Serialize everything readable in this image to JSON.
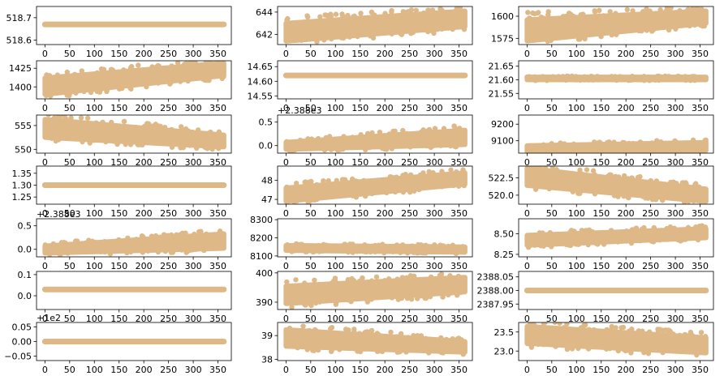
{
  "colors": {
    "marker": "#deb887",
    "axes": "#000000",
    "background": "#ffffff"
  },
  "chart_data": [
    {
      "type": "scatter",
      "panel": 1,
      "xlim": [
        -17,
        377
      ],
      "ylim": [
        518.58,
        518.75
      ],
      "yticks": [
        518.6,
        518.7
      ],
      "ytick_labels": [
        "518.6",
        "518.7"
      ],
      "xticks": [
        0,
        50,
        100,
        150,
        200,
        250,
        300,
        350
      ],
      "xtick_labels": [
        "0",
        "50",
        "100",
        "150",
        "200",
        "250",
        "300",
        "350"
      ],
      "band": {
        "lo": 518.67,
        "hi": 518.67,
        "lo_end": 518.67,
        "hi_end": 518.67
      }
    },
    {
      "type": "scatter",
      "panel": 2,
      "xlim": [
        -17,
        377
      ],
      "ylim": [
        641.1,
        644.5
      ],
      "yticks": [
        642,
        644
      ],
      "ytick_labels": [
        "642",
        "644"
      ],
      "xticks": [
        0,
        50,
        100,
        150,
        200,
        250,
        300,
        350
      ],
      "xtick_labels": [
        "0",
        "50",
        "100",
        "150",
        "200",
        "250",
        "300",
        "350"
      ],
      "band": {
        "lo": 641.4,
        "hi": 643.0,
        "lo_end": 642.7,
        "hi_end": 644.1
      }
    },
    {
      "type": "scatter",
      "panel": 3,
      "xlim": [
        -17,
        377
      ],
      "ylim": [
        1568,
        1611
      ],
      "yticks": [
        1575,
        1600
      ],
      "ytick_labels": [
        "1575",
        "1600"
      ],
      "xticks": [
        0,
        50,
        100,
        150,
        200,
        250,
        300,
        350
      ],
      "xtick_labels": [
        "0",
        "50",
        "100",
        "150",
        "200",
        "250",
        "300",
        "350"
      ],
      "band": {
        "lo": 1572,
        "hi": 1596,
        "lo_end": 1592,
        "hi_end": 1606
      }
    },
    {
      "type": "scatter",
      "panel": 4,
      "xlim": [
        -17,
        377
      ],
      "ylim": [
        1384,
        1435
      ],
      "yticks": [
        1400,
        1425
      ],
      "ytick_labels": [
        "1400",
        "1425"
      ],
      "xticks": [
        0,
        50,
        100,
        150,
        200,
        250,
        300,
        350
      ],
      "xtick_labels": [
        "0",
        "50",
        "100",
        "150",
        "200",
        "250",
        "300",
        "350"
      ],
      "band": {
        "lo": 1390,
        "hi": 1412,
        "lo_end": 1415,
        "hi_end": 1432
      }
    },
    {
      "type": "scatter",
      "panel": 5,
      "xlim": [
        -17,
        377
      ],
      "ylim": [
        14.54,
        14.67
      ],
      "yticks": [
        14.55,
        14.6,
        14.65
      ],
      "ytick_labels": [
        "14.55",
        "14.60",
        "14.65"
      ],
      "xticks": [
        0,
        50,
        100,
        150,
        200,
        250,
        300,
        350
      ],
      "xtick_labels": [
        "0",
        "50",
        "100",
        "150",
        "200",
        "250",
        "300",
        "350"
      ],
      "band": {
        "lo": 14.62,
        "hi": 14.62,
        "lo_end": 14.62,
        "hi_end": 14.62
      }
    },
    {
      "type": "scatter",
      "panel": 6,
      "xlim": [
        -17,
        377
      ],
      "ylim": [
        21.53,
        21.67
      ],
      "yticks": [
        21.55,
        21.6,
        21.65
      ],
      "ytick_labels": [
        "21.55",
        "21.60",
        "21.65"
      ],
      "xticks": [
        0,
        50,
        100,
        150,
        200,
        250,
        300,
        350
      ],
      "xtick_labels": [
        "0",
        "50",
        "100",
        "150",
        "200",
        "250",
        "300",
        "350"
      ],
      "band": {
        "lo": 21.6,
        "hi": 21.61,
        "lo_end": 21.6,
        "hi_end": 21.61
      }
    },
    {
      "type": "scatter",
      "panel": 7,
      "xlim": [
        -17,
        377
      ],
      "ylim": [
        549.2,
        557.2
      ],
      "yticks": [
        550,
        555
      ],
      "ytick_labels": [
        "550",
        "555"
      ],
      "xticks": [
        0,
        50,
        100,
        150,
        200,
        250,
        300,
        350
      ],
      "xtick_labels": [
        "0",
        "50",
        "100",
        "150",
        "200",
        "250",
        "300",
        "350"
      ],
      "band": {
        "lo": 552.5,
        "hi": 556.3,
        "lo_end": 550.5,
        "hi_end": 553.0
      }
    },
    {
      "type": "scatter",
      "panel": 8,
      "y_offset_label": "+2.388e3",
      "xlim": [
        -17,
        377
      ],
      "ylim": [
        -0.16,
        0.65
      ],
      "yticks": [
        0.0,
        0.5
      ],
      "ytick_labels": [
        "0.0",
        "0.5"
      ],
      "xticks": [
        0,
        50,
        100,
        150,
        200,
        250,
        300,
        350
      ],
      "xtick_labels": [
        "0",
        "50",
        "100",
        "150",
        "200",
        "250",
        "300",
        "350"
      ],
      "band": {
        "lo": -0.08,
        "hi": 0.07,
        "lo_end": 0.02,
        "hi_end": 0.33
      }
    },
    {
      "type": "scatter",
      "panel": 9,
      "xlim": [
        -17,
        377
      ],
      "ylim": [
        9025,
        9255
      ],
      "yticks": [
        9100,
        9200
      ],
      "ytick_labels": [
        "9100",
        "9200"
      ],
      "xticks": [
        0,
        50,
        100,
        150,
        200,
        250,
        300,
        350
      ],
      "xtick_labels": [
        "0",
        "50",
        "100",
        "150",
        "200",
        "250",
        "300",
        "350"
      ],
      "band": {
        "lo": 9035,
        "hi": 9070,
        "lo_end": 9040,
        "hi_end": 9090
      }
    },
    {
      "type": "scatter",
      "panel": 10,
      "xlim": [
        -17,
        377
      ],
      "ylim": [
        1.22,
        1.38
      ],
      "yticks": [
        1.25,
        1.3,
        1.35
      ],
      "ytick_labels": [
        "1.25",
        "1.30",
        "1.35"
      ],
      "xticks": [
        0,
        50,
        100,
        150,
        200,
        250,
        300,
        350
      ],
      "xtick_labels": [
        "0",
        "50",
        "100",
        "150",
        "200",
        "250",
        "300",
        "350"
      ],
      "band": {
        "lo": 1.3,
        "hi": 1.3,
        "lo_end": 1.3,
        "hi_end": 1.3
      }
    },
    {
      "type": "scatter",
      "panel": 11,
      "xlim": [
        -17,
        377
      ],
      "ylim": [
        46.75,
        48.75
      ],
      "yticks": [
        47,
        48
      ],
      "ytick_labels": [
        "47",
        "48"
      ],
      "xticks": [
        0,
        50,
        100,
        150,
        200,
        250,
        300,
        350
      ],
      "xtick_labels": [
        "0",
        "50",
        "100",
        "150",
        "200",
        "250",
        "300",
        "350"
      ],
      "band": {
        "lo": 46.9,
        "hi": 47.6,
        "lo_end": 47.8,
        "hi_end": 48.4
      }
    },
    {
      "type": "scatter",
      "panel": 12,
      "xlim": [
        -17,
        377
      ],
      "ylim": [
        518.7,
        524.2
      ],
      "yticks": [
        520.0,
        522.5
      ],
      "ytick_labels": [
        "520.0",
        "522.5"
      ],
      "xticks": [
        0,
        50,
        100,
        150,
        200,
        250,
        300,
        350
      ],
      "xtick_labels": [
        "0",
        "50",
        "100",
        "150",
        "200",
        "250",
        "300",
        "350"
      ],
      "band": {
        "lo": 521.4,
        "hi": 523.9,
        "lo_end": 519.1,
        "hi_end": 520.9
      }
    },
    {
      "type": "scatter",
      "panel": 13,
      "y_offset_label": "+2.388e3",
      "xlim": [
        -17,
        377
      ],
      "ylim": [
        -0.16,
        0.65
      ],
      "yticks": [
        0.0,
        0.5
      ],
      "ytick_labels": [
        "0.0",
        "0.5"
      ],
      "xticks": [
        0,
        50,
        100,
        150,
        200,
        250,
        300,
        350
      ],
      "xtick_labels": [
        "0",
        "50",
        "100",
        "150",
        "200",
        "250",
        "300",
        "350"
      ],
      "band": {
        "lo": -0.08,
        "hi": 0.07,
        "lo_end": 0.02,
        "hi_end": 0.33
      }
    },
    {
      "type": "scatter",
      "panel": 14,
      "xlim": [
        -17,
        377
      ],
      "ylim": [
        8095,
        8305
      ],
      "yticks": [
        8100,
        8200,
        8300
      ],
      "ytick_labels": [
        "8100",
        "8200",
        "8300"
      ],
      "xticks": [
        0,
        50,
        100,
        150,
        200,
        250,
        300,
        350
      ],
      "xtick_labels": [
        "0",
        "50",
        "100",
        "150",
        "200",
        "250",
        "300",
        "350"
      ],
      "band": {
        "lo": 8130,
        "hi": 8158,
        "lo_end": 8120,
        "hi_end": 8150
      }
    },
    {
      "type": "scatter",
      "panel": 15,
      "xlim": [
        -17,
        377
      ],
      "ylim": [
        8.22,
        8.68
      ],
      "yticks": [
        8.25,
        8.5
      ],
      "ytick_labels": [
        "8.25",
        "8.50"
      ],
      "xticks": [
        0,
        50,
        100,
        150,
        200,
        250,
        300,
        350
      ],
      "xtick_labels": [
        "0",
        "50",
        "100",
        "150",
        "200",
        "250",
        "300",
        "350"
      ],
      "band": {
        "lo": 8.36,
        "hi": 8.48,
        "lo_end": 8.45,
        "hi_end": 8.56
      }
    },
    {
      "type": "scatter",
      "panel": 16,
      "xlim": [
        -17,
        377
      ],
      "ylim": [
        -0.065,
        0.115
      ],
      "yticks": [
        0.0,
        0.1
      ],
      "ytick_labels": [
        "0.0",
        "0.1"
      ],
      "xticks": [
        0,
        50,
        100,
        150,
        200,
        250,
        300,
        350
      ],
      "xtick_labels": [
        "0",
        "50",
        "100",
        "150",
        "200",
        "250",
        "300",
        "350"
      ],
      "band": {
        "lo": 0.03,
        "hi": 0.03,
        "lo_end": 0.03,
        "hi_end": 0.03
      }
    },
    {
      "type": "scatter",
      "panel": 17,
      "xlim": [
        -17,
        377
      ],
      "ylim": [
        387.5,
        400.5
      ],
      "yticks": [
        390,
        400
      ],
      "ytick_labels": [
        "390",
        "400"
      ],
      "xticks": [
        0,
        50,
        100,
        150,
        200,
        250,
        300,
        350
      ],
      "xtick_labels": [
        "0",
        "50",
        "100",
        "150",
        "200",
        "250",
        "300",
        "350"
      ],
      "band": {
        "lo": 389.5,
        "hi": 395.5,
        "lo_end": 393.5,
        "hi_end": 398.5
      }
    },
    {
      "type": "scatter",
      "panel": 18,
      "xlim": [
        -17,
        377
      ],
      "ylim": [
        2387.93,
        2388.07
      ],
      "yticks": [
        2387.95,
        2388.0,
        2388.05
      ],
      "ytick_labels": [
        "2387.95",
        "2388.00",
        "2388.05"
      ],
      "xticks": [
        0,
        50,
        100,
        150,
        200,
        250,
        300,
        350
      ],
      "xtick_labels": [
        "0",
        "50",
        "100",
        "150",
        "200",
        "250",
        "300",
        "350"
      ],
      "band": {
        "lo": 2388.0,
        "hi": 2388.0,
        "lo_end": 2388.0,
        "hi_end": 2388.0
      }
    },
    {
      "type": "scatter",
      "panel": 19,
      "y_offset_label": "+1e2",
      "xlim": [
        -17,
        377
      ],
      "ylim": [
        -0.065,
        0.065
      ],
      "yticks": [
        -0.05,
        0.0,
        0.05
      ],
      "ytick_labels": [
        "−0.05",
        "0.00",
        "0.05"
      ],
      "xticks": [
        0,
        50,
        100,
        150,
        200,
        250,
        300,
        350
      ],
      "xtick_labels": [
        "0",
        "50",
        "100",
        "150",
        "200",
        "250",
        "300",
        "350"
      ],
      "band": {
        "lo": 0.0,
        "hi": 0.0,
        "lo_end": 0.0,
        "hi_end": 0.0
      }
    },
    {
      "type": "scatter",
      "panel": 20,
      "xlim": [
        -17,
        377
      ],
      "ylim": [
        37.95,
        39.55
      ],
      "yticks": [
        38,
        39
      ],
      "ytick_labels": [
        "38",
        "39"
      ],
      "xticks": [
        0,
        50,
        100,
        150,
        200,
        250,
        300,
        350
      ],
      "xtick_labels": [
        "0",
        "50",
        "100",
        "150",
        "200",
        "250",
        "300",
        "350"
      ],
      "band": {
        "lo": 38.55,
        "hi": 39.25,
        "lo_end": 38.3,
        "hi_end": 38.75
      }
    },
    {
      "type": "scatter",
      "panel": 21,
      "xlim": [
        -17,
        377
      ],
      "ylim": [
        22.75,
        23.75
      ],
      "yticks": [
        23.0,
        23.5
      ],
      "ytick_labels": [
        "23.0",
        "23.5"
      ],
      "xticks": [
        0,
        50,
        100,
        150,
        200,
        250,
        300,
        350
      ],
      "xtick_labels": [
        "0",
        "50",
        "100",
        "150",
        "200",
        "250",
        "300",
        "350"
      ],
      "band": {
        "lo": 23.2,
        "hi": 23.65,
        "lo_end": 22.95,
        "hi_end": 23.35
      }
    }
  ]
}
